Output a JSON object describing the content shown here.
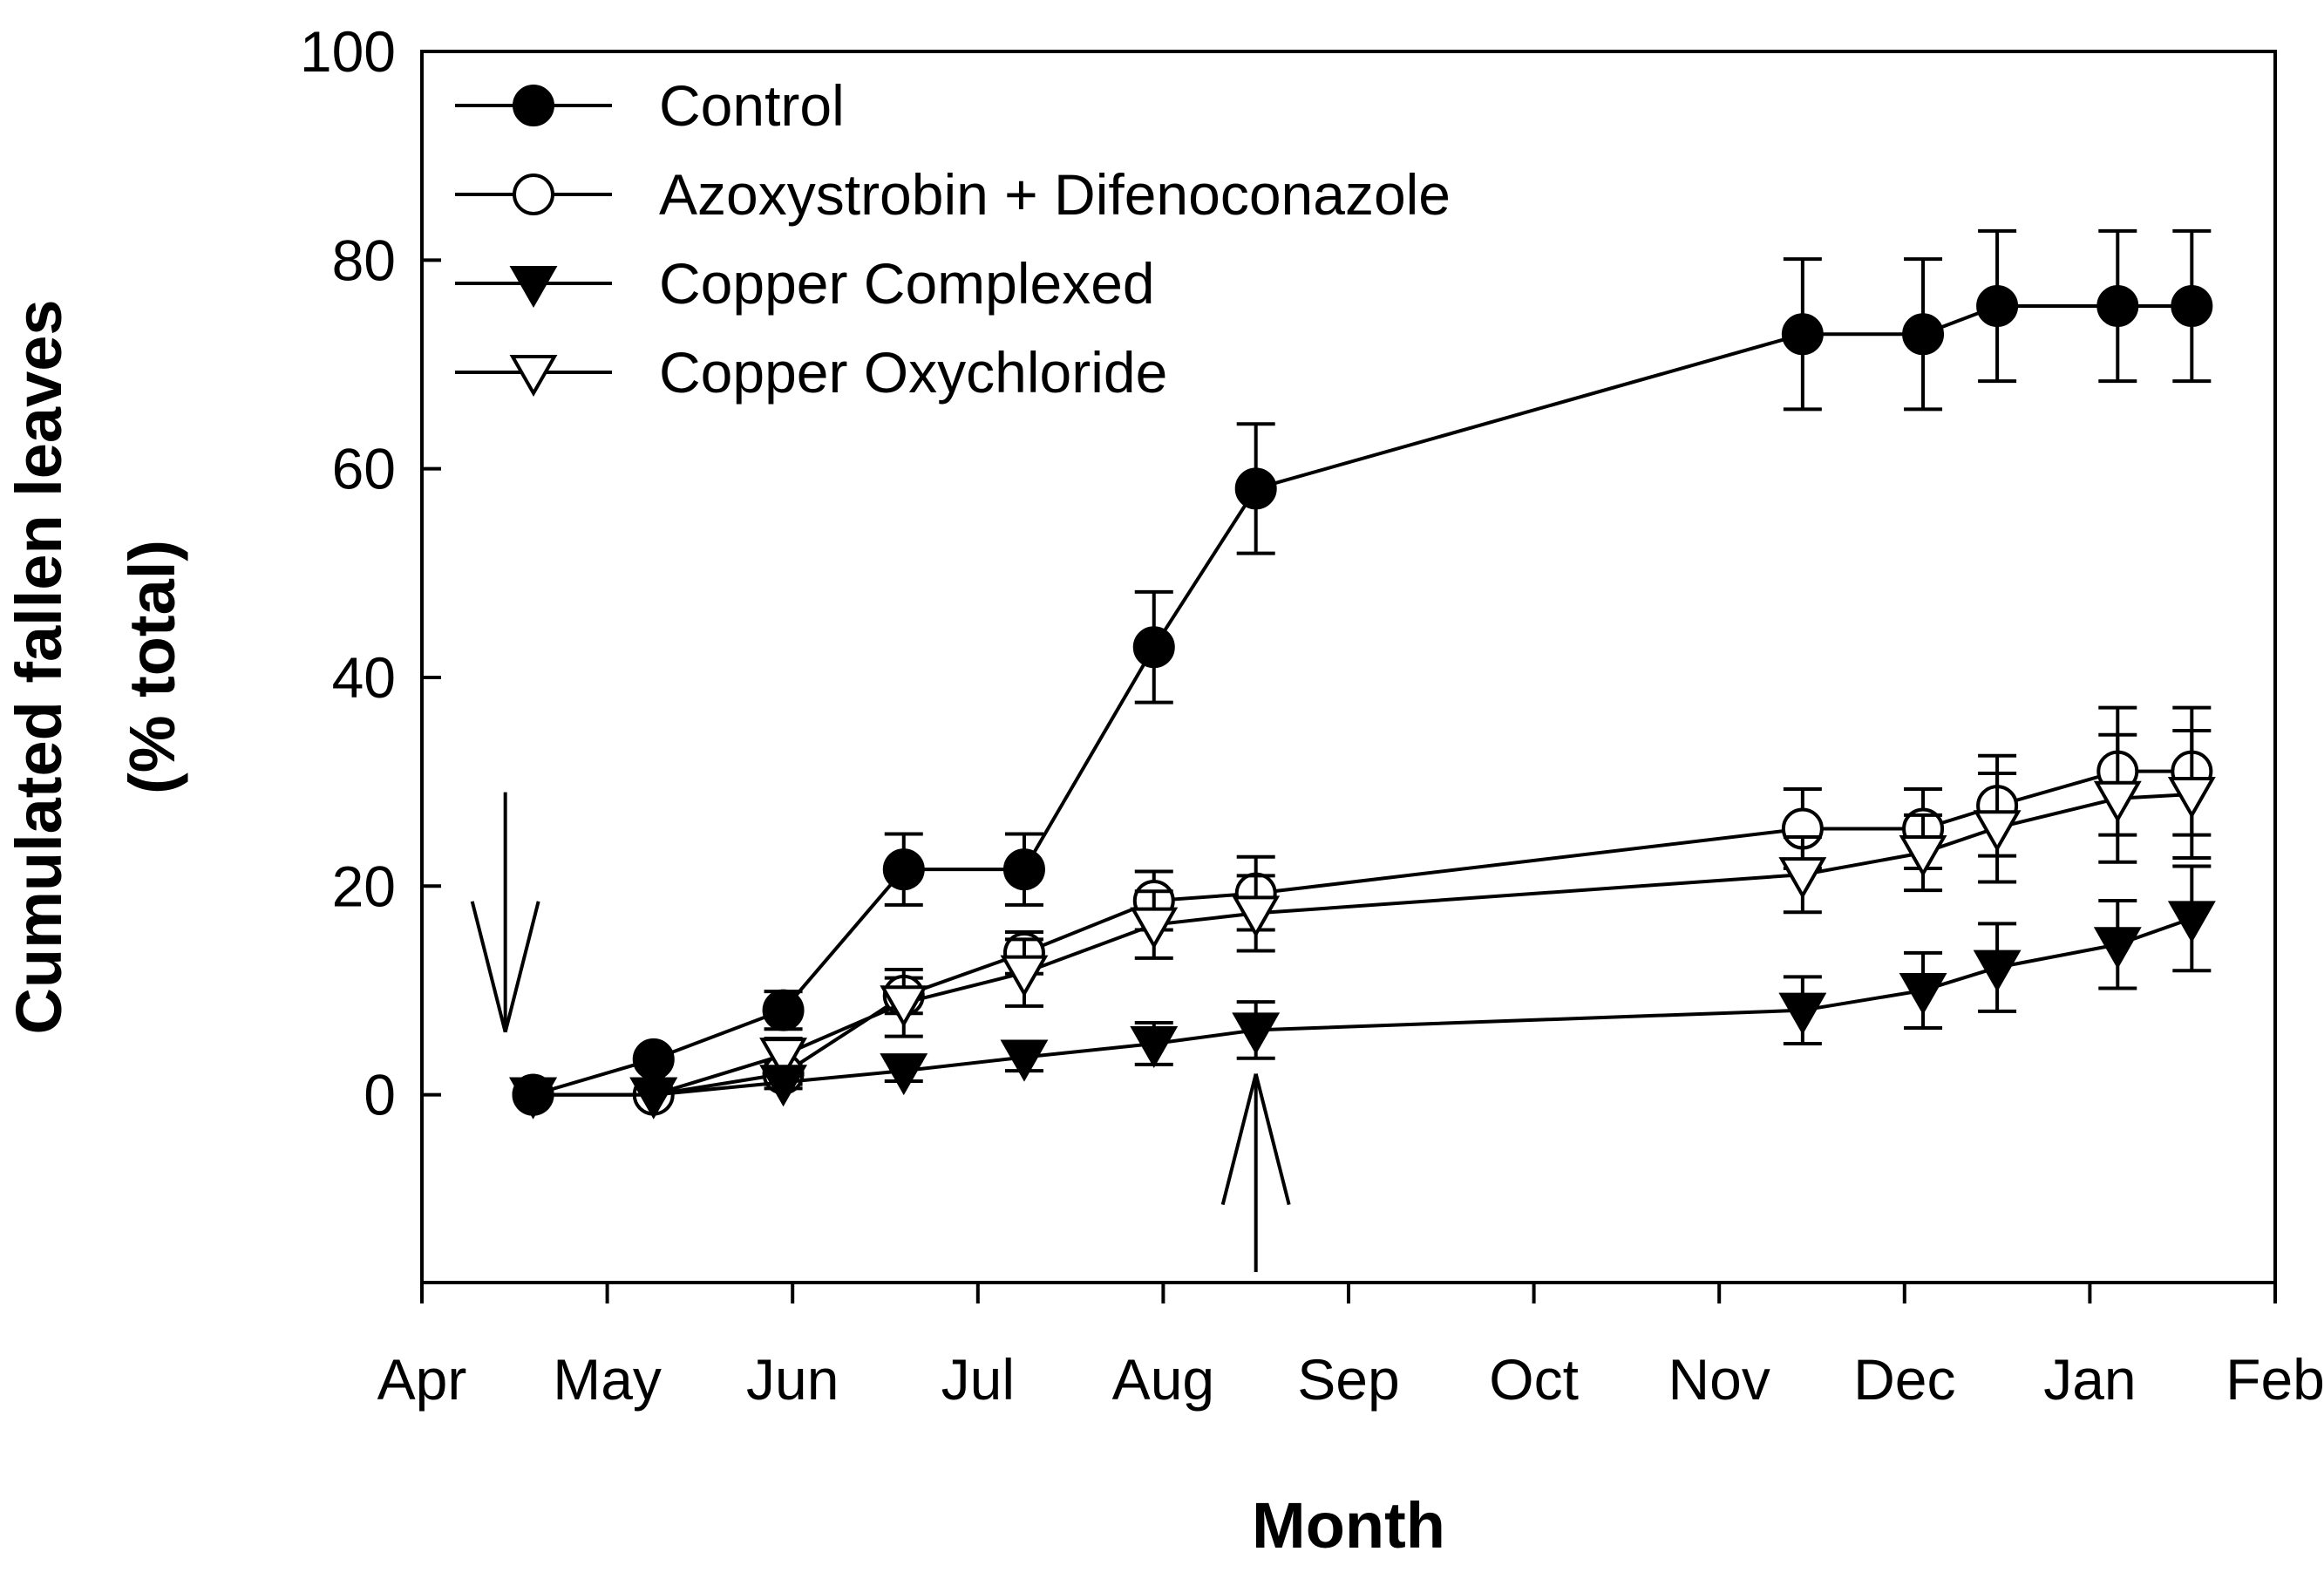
{
  "chart_data": {
    "type": "line",
    "title": "",
    "xlabel": "Month",
    "ylabel_line1": "Cumulated fallen leaves",
    "ylabel_line2": "(% total)",
    "xlim": [
      0,
      10
    ],
    "ylim": [
      -18,
      100
    ],
    "x_ticks": [
      {
        "value": 0,
        "label": "Apr"
      },
      {
        "value": 1,
        "label": "May"
      },
      {
        "value": 2,
        "label": "Jun"
      },
      {
        "value": 3,
        "label": "Jul"
      },
      {
        "value": 4,
        "label": "Aug"
      },
      {
        "value": 5,
        "label": "Sep"
      },
      {
        "value": 6,
        "label": "Oct"
      },
      {
        "value": 7,
        "label": "Nov"
      },
      {
        "value": 8,
        "label": "Dec"
      },
      {
        "value": 9,
        "label": "Jan"
      },
      {
        "value": 10,
        "label": "Feb"
      }
    ],
    "y_ticks": [
      {
        "value": 0,
        "label": "0"
      },
      {
        "value": 20,
        "label": "20"
      },
      {
        "value": 40,
        "label": "40"
      },
      {
        "value": 60,
        "label": "60"
      },
      {
        "value": 80,
        "label": "80"
      },
      {
        "value": 100,
        "label": "100"
      }
    ],
    "legend_position": "top-left",
    "series": [
      {
        "name": "Control",
        "marker": "circle-filled",
        "x": [
          0.6,
          1.25,
          1.95,
          2.6,
          3.25,
          3.95,
          4.5,
          7.45,
          8.1,
          8.5,
          9.15,
          9.55
        ],
        "y": [
          0,
          3.4,
          8.1,
          21.6,
          21.6,
          42.9,
          58.1,
          72.9,
          72.9,
          75.6,
          75.6,
          75.6
        ],
        "err": [
          0,
          0,
          1.8,
          3.4,
          3.4,
          5.3,
          6.2,
          7.2,
          7.2,
          7.2,
          7.2,
          7.2
        ]
      },
      {
        "name": "Azoxystrobin + Difenoconazole",
        "marker": "circle-open",
        "x": [
          0.6,
          1.25,
          1.95,
          2.6,
          3.25,
          3.95,
          4.5,
          7.45,
          8.1,
          8.5,
          9.15,
          9.55
        ],
        "y": [
          0,
          0,
          2.0,
          9.5,
          13.6,
          18.6,
          19.3,
          25.5,
          25.5,
          27.7,
          31.0,
          31.0
        ],
        "err": [
          0,
          0,
          1.0,
          1.7,
          2.0,
          2.8,
          3.5,
          3.8,
          3.8,
          4.8,
          6.1,
          6.1
        ]
      },
      {
        "name": "Copper Complexed",
        "marker": "triangle-down-filled",
        "x": [
          0.6,
          1.25,
          1.95,
          2.6,
          3.25,
          3.95,
          4.5,
          7.45,
          8.1,
          8.5,
          9.15,
          9.55
        ],
        "y": [
          0,
          0,
          1.2,
          2.3,
          3.6,
          4.9,
          6.2,
          8.1,
          10.0,
          12.2,
          14.4,
          16.9
        ],
        "err": [
          0,
          0,
          0.6,
          1.0,
          1.3,
          2.0,
          2.7,
          3.2,
          3.6,
          4.2,
          4.2,
          5.0
        ]
      },
      {
        "name": "Copper Oxychloride",
        "marker": "triangle-down-open",
        "x": [
          0.6,
          1.25,
          1.95,
          2.6,
          3.25,
          3.95,
          4.5,
          7.45,
          8.1,
          8.5,
          9.15,
          9.55
        ],
        "y": [
          0,
          0,
          3.8,
          8.8,
          11.7,
          16.3,
          17.4,
          21.1,
          23.2,
          25.6,
          28.4,
          28.8
        ],
        "err": [
          0,
          0,
          1.6,
          3.2,
          3.2,
          3.2,
          3.6,
          3.6,
          3.6,
          5.2,
          6.1,
          6.1
        ]
      }
    ],
    "annotations": [
      {
        "type": "arrow-down",
        "x": 0.45,
        "y_from": 29,
        "y_to": 6
      },
      {
        "type": "arrow-up",
        "x": 4.5,
        "y_from": -17,
        "y_to": 2
      }
    ]
  }
}
